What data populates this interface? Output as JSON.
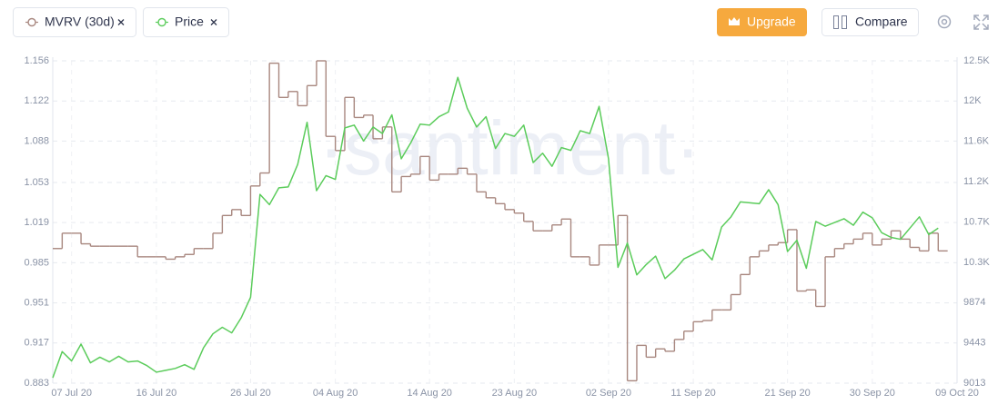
{
  "chart_data": {
    "type": "line",
    "watermark": "·santiment·",
    "x": [
      "2020-07-05",
      "2020-07-06",
      "2020-07-07",
      "2020-07-08",
      "2020-07-09",
      "2020-07-10",
      "2020-07-11",
      "2020-07-12",
      "2020-07-13",
      "2020-07-14",
      "2020-07-15",
      "2020-07-16",
      "2020-07-17",
      "2020-07-18",
      "2020-07-19",
      "2020-07-20",
      "2020-07-21",
      "2020-07-22",
      "2020-07-23",
      "2020-07-24",
      "2020-07-25",
      "2020-07-26",
      "2020-07-27",
      "2020-07-28",
      "2020-07-29",
      "2020-07-30",
      "2020-07-31",
      "2020-08-01",
      "2020-08-02",
      "2020-08-03",
      "2020-08-04",
      "2020-08-05",
      "2020-08-06",
      "2020-08-07",
      "2020-08-08",
      "2020-08-09",
      "2020-08-10",
      "2020-08-11",
      "2020-08-12",
      "2020-08-13",
      "2020-08-14",
      "2020-08-15",
      "2020-08-16",
      "2020-08-17",
      "2020-08-18",
      "2020-08-19",
      "2020-08-20",
      "2020-08-21",
      "2020-08-22",
      "2020-08-23",
      "2020-08-24",
      "2020-08-25",
      "2020-08-26",
      "2020-08-27",
      "2020-08-28",
      "2020-08-29",
      "2020-08-30",
      "2020-08-31",
      "2020-09-01",
      "2020-09-02",
      "2020-09-03",
      "2020-09-04",
      "2020-09-05",
      "2020-09-06",
      "2020-09-07",
      "2020-09-08",
      "2020-09-09",
      "2020-09-10",
      "2020-09-11",
      "2020-09-12",
      "2020-09-13",
      "2020-09-14",
      "2020-09-15",
      "2020-09-16",
      "2020-09-17",
      "2020-09-18",
      "2020-09-19",
      "2020-09-20",
      "2020-09-21",
      "2020-09-22",
      "2020-09-23",
      "2020-09-24",
      "2020-09-25",
      "2020-09-26",
      "2020-09-27",
      "2020-09-28",
      "2020-09-29",
      "2020-09-30",
      "2020-10-01",
      "2020-10-02",
      "2020-10-03",
      "2020-10-04",
      "2020-10-05",
      "2020-10-06",
      "2020-10-07"
    ],
    "xlim": [
      "2020-07-05",
      "2020-10-09"
    ],
    "xticks": [
      {
        "value": "2020-07-07",
        "label": "07 Jul 20"
      },
      {
        "value": "2020-07-16",
        "label": "16 Jul 20"
      },
      {
        "value": "2020-07-26",
        "label": "26 Jul 20"
      },
      {
        "value": "2020-08-04",
        "label": "04 Aug 20"
      },
      {
        "value": "2020-08-14",
        "label": "14 Aug 20"
      },
      {
        "value": "2020-08-23",
        "label": "23 Aug 20"
      },
      {
        "value": "2020-09-02",
        "label": "02 Sep 20"
      },
      {
        "value": "2020-09-11",
        "label": "11 Sep 20"
      },
      {
        "value": "2020-09-21",
        "label": "21 Sep 20"
      },
      {
        "value": "2020-09-30",
        "label": "30 Sep 20"
      },
      {
        "value": "2020-10-09",
        "label": "09 Oct 20"
      }
    ],
    "ylim": [
      0.883,
      1.156
    ],
    "yticks": [
      0.883,
      0.917,
      0.951,
      0.985,
      1.019,
      1.053,
      1.088,
      1.122,
      1.156
    ],
    "y2lim": [
      9013,
      12457
    ],
    "y2ticks": [
      9013,
      9443,
      9874,
      {
        "value": 10304,
        "label": "10.3K"
      },
      {
        "value": 10735,
        "label": "10.7K"
      },
      {
        "value": 11166,
        "label": "11.2K"
      },
      {
        "value": 11596,
        "label": "11.6K"
      },
      {
        "value": 12027,
        "label": "12K"
      },
      {
        "value": 12457,
        "label": "12.5K"
      }
    ],
    "grid": true,
    "series": [
      {
        "name": "MVRV (30d)",
        "color": "#a8877f",
        "step": true,
        "values": [
          0.997,
          1.01,
          1.01,
          1.001,
          0.999,
          0.999,
          0.999,
          0.999,
          0.999,
          0.99,
          0.99,
          0.99,
          0.988,
          0.99,
          0.992,
          0.997,
          0.997,
          1.01,
          1.025,
          1.03,
          1.025,
          1.05,
          1.061,
          1.154,
          1.125,
          1.13,
          1.118,
          1.135,
          1.156,
          1.092,
          1.08,
          1.125,
          1.108,
          1.11,
          1.09,
          1.1,
          1.045,
          1.058,
          1.06,
          1.075,
          1.055,
          1.06,
          1.06,
          1.065,
          1.06,
          1.045,
          1.04,
          1.035,
          1.03,
          1.027,
          1.02,
          1.012,
          1.012,
          1.017,
          1.022,
          0.99,
          0.99,
          0.983,
          1.0,
          1.0,
          1.025,
          0.885,
          0.915,
          0.905,
          0.912,
          0.91,
          0.92,
          0.927,
          0.935,
          0.936,
          0.945,
          0.945,
          0.958,
          0.975,
          0.99,
          0.995,
          1.0,
          1.002,
          1.013,
          0.961,
          0.962,
          0.948,
          0.99,
          0.997,
          1.001,
          1.005,
          1.01,
          1.0,
          1.005,
          1.012,
          1.005,
          0.998,
          0.995,
          1.01,
          0.995
        ]
      },
      {
        "name": "Price",
        "color": "#5bcc5b",
        "axis": "y2",
        "values": [
          9070,
          9350,
          9250,
          9430,
          9230,
          9290,
          9240,
          9300,
          9240,
          9250,
          9200,
          9130,
          9150,
          9170,
          9210,
          9160,
          9390,
          9540,
          9610,
          9550,
          9710,
          9930,
          11030,
          10920,
          11100,
          11110,
          11350,
          11800,
          11070,
          11230,
          11190,
          11740,
          11770,
          11600,
          11750,
          11680,
          11880,
          11410,
          11580,
          11780,
          11770,
          11860,
          11910,
          12280,
          11950,
          11750,
          11860,
          11520,
          11680,
          11650,
          11770,
          11370,
          11470,
          11330,
          11530,
          11500,
          11710,
          11680,
          11970,
          11410,
          10250,
          10510,
          10170,
          10280,
          10370,
          10130,
          10220,
          10340,
          10390,
          10440,
          10330,
          10680,
          10790,
          10950,
          10940,
          10930,
          11080,
          10920,
          10420,
          10540,
          10240,
          10740,
          10690,
          10730,
          10770,
          10700,
          10840,
          10780,
          10620,
          10570,
          10550,
          10670,
          10790,
          10600,
          10670
        ]
      }
    ]
  },
  "toolbar": {
    "upgrade": "Upgrade",
    "compare": "Compare"
  }
}
